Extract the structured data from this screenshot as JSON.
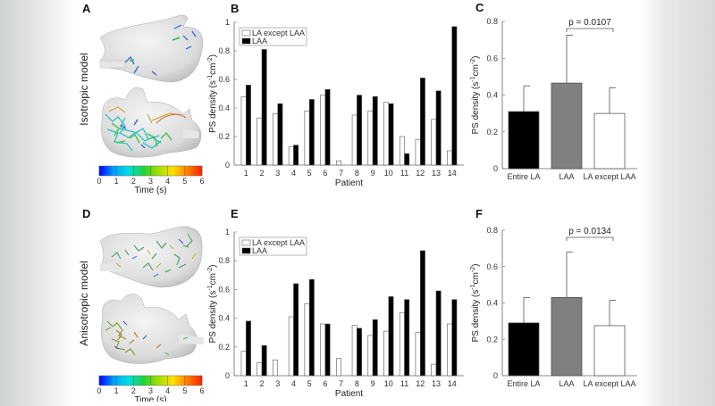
{
  "panels": {
    "A": {
      "letter": "A",
      "row_label": "Isotropic model"
    },
    "B": {
      "letter": "B"
    },
    "C": {
      "letter": "C"
    },
    "D": {
      "letter": "D",
      "row_label": "Anisotropic model"
    },
    "E": {
      "letter": "E"
    },
    "F": {
      "letter": "F"
    }
  },
  "colorbar": {
    "label": "Time (s)",
    "ticks": [
      "0",
      "1",
      "2",
      "3",
      "4",
      "5",
      "6"
    ],
    "colormap": [
      "#0000ff",
      "#00a0ff",
      "#00e0e0",
      "#20d040",
      "#a0e000",
      "#ffe000",
      "#ff8000",
      "#ff2000"
    ]
  },
  "chart_data": [
    {
      "id": "B",
      "type": "bar",
      "xlabel": "Patient",
      "ylabel": "PS density (s-1cm-2)",
      "ylim": [
        0,
        1
      ],
      "yticks": [
        "0",
        "0.2",
        "0.4",
        "0.6",
        "0.8",
        "1"
      ],
      "categories": [
        "1",
        "2",
        "3",
        "4",
        "5",
        "6",
        "7",
        "8",
        "9",
        "10",
        "11",
        "12",
        "13",
        "14"
      ],
      "legend": "top-left",
      "series": [
        {
          "name": "LA except LAA",
          "color": "#ffffff",
          "values": [
            0.48,
            0.33,
            0.36,
            0.13,
            0.38,
            0.49,
            0.03,
            0.35,
            0.38,
            0.44,
            0.2,
            0.18,
            0.32,
            0.1
          ]
        },
        {
          "name": "LAA",
          "color": "#000000",
          "values": [
            0.56,
            0.81,
            0.43,
            0.14,
            0.46,
            0.53,
            0,
            0.49,
            0.48,
            0.43,
            0.08,
            0.61,
            0.52,
            0.97
          ]
        }
      ]
    },
    {
      "id": "C",
      "type": "bar",
      "ylabel": "PS density (s-1cm-2)",
      "ylim": [
        0,
        0.8
      ],
      "yticks": [
        "0",
        "0.2",
        "0.4",
        "0.6",
        "0.8"
      ],
      "categories": [
        "Entire LA",
        "LAA",
        "LA except LAA"
      ],
      "colors": [
        "#000000",
        "#808080",
        "#ffffff"
      ],
      "values": [
        0.31,
        0.465,
        0.3
      ],
      "error_upper": [
        0.45,
        0.725,
        0.44
      ],
      "annotation": "p = 0.0107"
    },
    {
      "id": "E",
      "type": "bar",
      "xlabel": "Patient",
      "ylabel": "PS density (s-1cm-2)",
      "ylim": [
        0,
        1
      ],
      "yticks": [
        "0",
        "0.2",
        "0.4",
        "0.6",
        "0.8",
        "1"
      ],
      "categories": [
        "1",
        "2",
        "3",
        "4",
        "5",
        "6",
        "7",
        "8",
        "9",
        "10",
        "11",
        "12",
        "13",
        "14"
      ],
      "legend": "top-left",
      "series": [
        {
          "name": "LA except LAA",
          "color": "#ffffff",
          "values": [
            0.17,
            0.09,
            0.11,
            0.41,
            0.5,
            0.36,
            0.12,
            0.35,
            0.28,
            0.31,
            0.44,
            0.3,
            0.08,
            0.36
          ]
        },
        {
          "name": "LAA",
          "color": "#000000",
          "values": [
            0.38,
            0.21,
            0,
            0.64,
            0.67,
            0.36,
            0,
            0.33,
            0.39,
            0.55,
            0.53,
            0.87,
            0.59,
            0.53
          ]
        }
      ]
    },
    {
      "id": "F",
      "type": "bar",
      "ylabel": "PS density (s-1cm-2)",
      "ylim": [
        0,
        0.8
      ],
      "yticks": [
        "0",
        "0.2",
        "0.4",
        "0.6",
        "0.8"
      ],
      "categories": [
        "Entire LA",
        "LAA",
        "LA except LAA"
      ],
      "colors": [
        "#000000",
        "#808080",
        "#ffffff"
      ],
      "values": [
        0.29,
        0.43,
        0.275
      ],
      "error_upper": [
        0.43,
        0.68,
        0.415
      ],
      "annotation": "p = 0.0134"
    }
  ]
}
